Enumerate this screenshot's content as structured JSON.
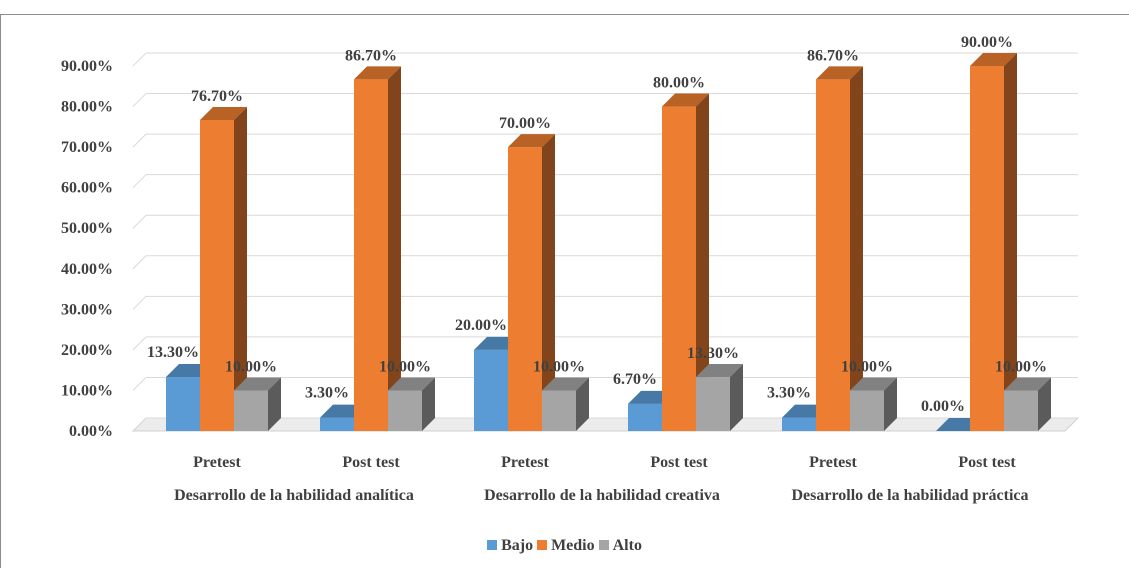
{
  "chart_data": {
    "type": "bar",
    "title": "",
    "xlabel": "",
    "ylabel": "",
    "ylim": [
      0,
      0.9
    ],
    "yticks": [
      "0.00%",
      "10.00%",
      "20.00%",
      "30.00%",
      "40.00%",
      "50.00%",
      "60.00%",
      "70.00%",
      "80.00%",
      "90.00%"
    ],
    "grid": true,
    "legend_position": "bottom",
    "groups": [
      {
        "label": "Desarrollo de la habilidad analítica",
        "categories": [
          "Pretest",
          "Post test"
        ]
      },
      {
        "label": "Desarrollo de la habilidad creativa",
        "categories": [
          "Pretest",
          "Post test"
        ]
      },
      {
        "label": "Desarrollo de la habilidad práctica",
        "categories": [
          "Pretest",
          "Post test"
        ]
      }
    ],
    "series": [
      {
        "name": "Bajo",
        "color": "#5b9bd5",
        "values": [
          0.133,
          0.033,
          0.2,
          0.067,
          0.033,
          0.0
        ],
        "labels": [
          "13.30%",
          "3.30%",
          "20.00%",
          "6.70%",
          "3.30%",
          "0.00%"
        ]
      },
      {
        "name": "Medio",
        "color": "#ed7d31",
        "values": [
          0.767,
          0.867,
          0.7,
          0.8,
          0.867,
          0.9
        ],
        "labels": [
          "76.70%",
          "86.70%",
          "70.00%",
          "80.00%",
          "86.70%",
          "90.00%"
        ]
      },
      {
        "name": "Alto",
        "color": "#a5a5a5",
        "values": [
          0.1,
          0.1,
          0.1,
          0.133,
          0.1,
          0.1
        ],
        "labels": [
          "10.00%",
          "10.00%",
          "10.00%",
          "13.30%",
          "10.00%",
          "10.00%"
        ]
      }
    ]
  }
}
